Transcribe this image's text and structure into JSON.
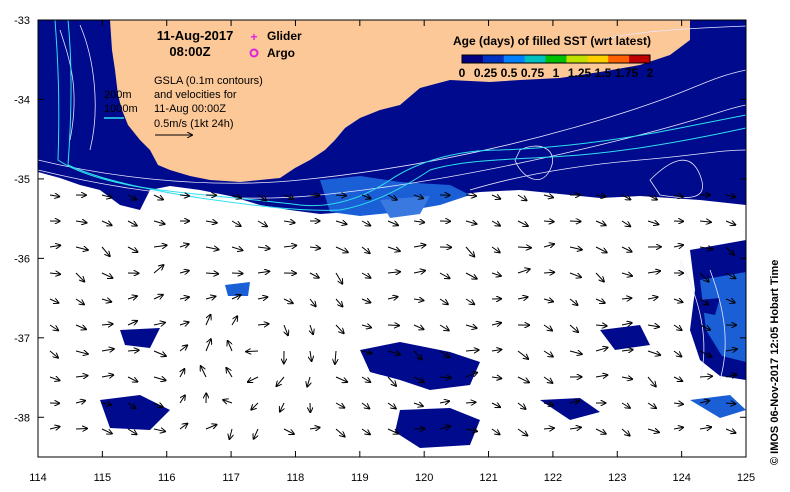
{
  "header": {
    "date": "11-Aug-2017",
    "time": "08:00Z"
  },
  "legend_markers": [
    {
      "label": "Glider",
      "color": "#e020e0",
      "symbol": "plus"
    },
    {
      "label": "Argo",
      "color": "#e020e0",
      "symbol": "circle"
    }
  ],
  "colorbar": {
    "title": "Age (days) of filled SST (wrt latest)",
    "ticks": [
      "0",
      "0.25",
      "0.5",
      "0.75",
      "1",
      "1.25",
      "1.5",
      "1.75",
      "2"
    ],
    "colors": [
      "#000080",
      "#0030c0",
      "#0080ff",
      "#00c0c0",
      "#00c000",
      "#c0e000",
      "#ffd000",
      "#ff6000",
      "#c00000"
    ]
  },
  "gsla_note": {
    "line1": "GSLA (0.1m contours)",
    "line2": "and velocities for",
    "line3": "11-Aug 00:00Z",
    "line4": "0.5m/s (1kt 24h)"
  },
  "isobaths": {
    "label_200": "200m",
    "label_1000": "1000m"
  },
  "axes": {
    "x_ticks": [
      "114",
      "115",
      "116",
      "117",
      "118",
      "119",
      "120",
      "121",
      "122",
      "123",
      "124",
      "125"
    ],
    "y_ticks": [
      "-33",
      "-34",
      "-35",
      "-36",
      "-37",
      "-38"
    ]
  },
  "credit": "© IMOS 06-Nov-2017 12:05 Hobart Time",
  "colors": {
    "land": "#fcc898",
    "ocean_deep": "#000a8c",
    "ocean_mid": "#1a5fd6",
    "contour": "#e8e8ff",
    "isobath": "#30e0f0",
    "arrow": "#000000"
  },
  "map_extent": {
    "lon": [
      114,
      125
    ],
    "lat": [
      -38.5,
      -33
    ]
  }
}
